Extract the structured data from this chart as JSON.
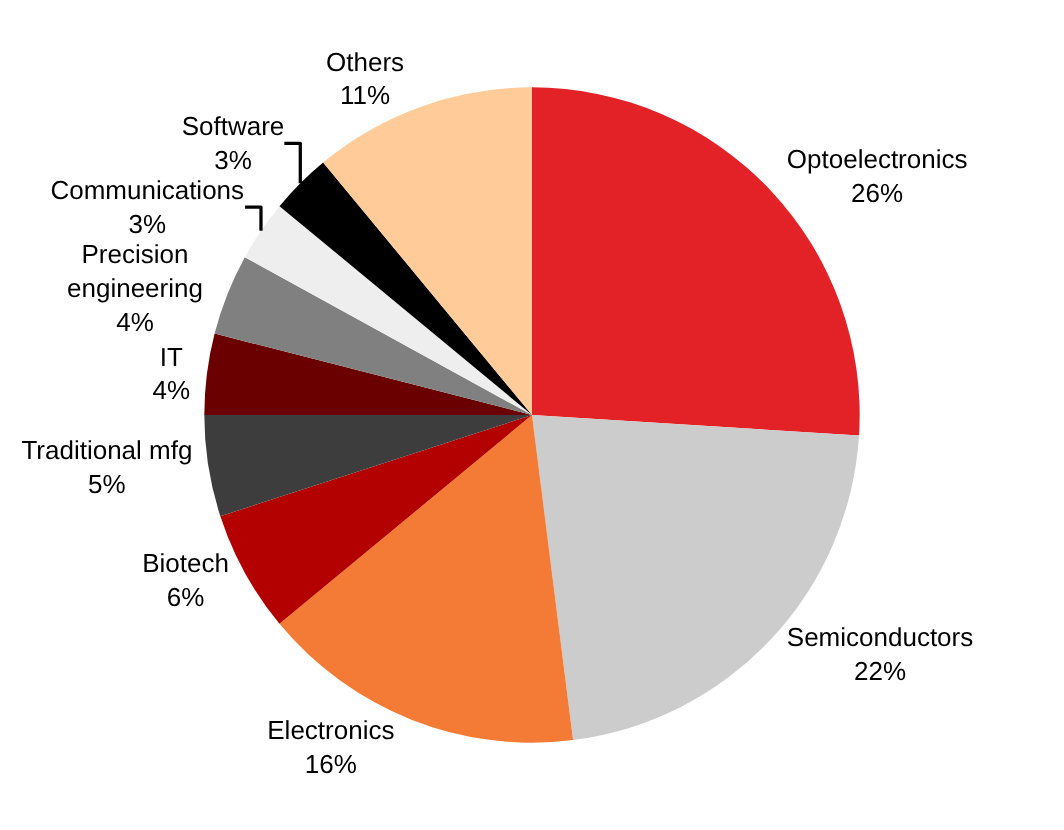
{
  "chart_data": {
    "type": "pie",
    "categories": [
      "Optoelectronics",
      "Semiconductors",
      "Electronics",
      "Biotech",
      "Traditional mfg",
      "IT",
      "Precision engineering",
      "Communications",
      "Software",
      "Others"
    ],
    "values": [
      26,
      22,
      16,
      6,
      5,
      4,
      4,
      3,
      3,
      11
    ],
    "value_labels": [
      "26%",
      "22%",
      "16%",
      "6%",
      "5%",
      "4%",
      "4%",
      "3%",
      "3%",
      "11%"
    ],
    "colors": [
      "#e32228",
      "#cccccc",
      "#f47b36",
      "#b30000",
      "#3d3d3d",
      "#6b0000",
      "#808080",
      "#eeeeee",
      "#000000",
      "#ffcc99"
    ],
    "legend": false
  }
}
